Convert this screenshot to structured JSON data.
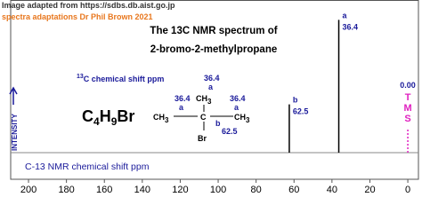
{
  "chart_data": {
    "type": "spectrum",
    "credits": [
      "Image adapted from https://sdbs.db.aist.go.jp",
      "spectra adaptations Dr Phil Brown 2021"
    ],
    "title": [
      "The 13C NMR spectrum of",
      "2-bromo-2-methylpropane"
    ],
    "xlabel": "C-13 NMR chemical shift ppm",
    "ylabel": "INTENSITY",
    "shift_caption": [
      "13",
      "C  chemical shift ppm"
    ],
    "xlim": [
      209.4,
      -5.6
    ],
    "xticks": [
      200,
      180,
      160,
      140,
      120,
      100,
      80,
      60,
      40,
      20,
      0
    ],
    "ylim": [
      0,
      100
    ],
    "color": "#000000",
    "peaks": {
      "x": [
        62.5,
        36.4
      ],
      "values": [
        32,
        88
      ],
      "labels": [
        "b",
        "a"
      ]
    },
    "reference": {
      "x": 0,
      "x_label": "0.00",
      "value": 16,
      "letters": [
        "T",
        "M",
        "S"
      ],
      "color": "#e020c0"
    },
    "molecule": {
      "formula": [
        "C",
        "4",
        "H",
        "9",
        "Br"
      ],
      "methyl": [
        "CH",
        "3"
      ],
      "center": "C",
      "halogen": "Br"
    }
  }
}
